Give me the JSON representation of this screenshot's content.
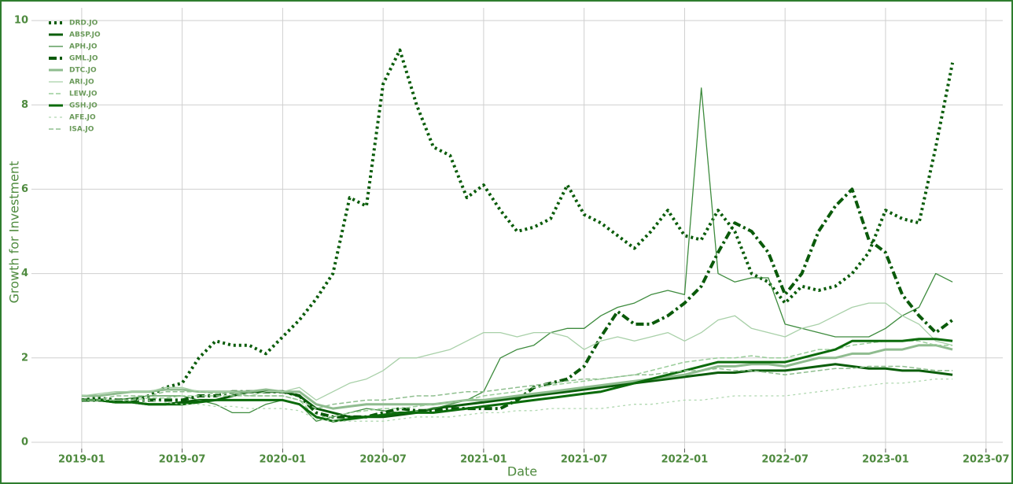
{
  "chart_data": {
    "type": "line",
    "xlabel": "Date",
    "ylabel": "Growth for Investment",
    "x": [
      "2019-01",
      "2019-02",
      "2019-03",
      "2019-04",
      "2019-05",
      "2019-06",
      "2019-07",
      "2019-08",
      "2019-09",
      "2019-10",
      "2019-11",
      "2019-12",
      "2020-01",
      "2020-02",
      "2020-03",
      "2020-04",
      "2020-05",
      "2020-06",
      "2020-07",
      "2020-08",
      "2020-09",
      "2020-10",
      "2020-11",
      "2020-12",
      "2021-01",
      "2021-02",
      "2021-03",
      "2021-04",
      "2021-05",
      "2021-06",
      "2021-07",
      "2021-08",
      "2021-09",
      "2021-10",
      "2021-11",
      "2021-12",
      "2022-01",
      "2022-02",
      "2022-03",
      "2022-04",
      "2022-05",
      "2022-06",
      "2022-07",
      "2022-08",
      "2022-09",
      "2022-10",
      "2022-11",
      "2022-12",
      "2023-01",
      "2023-02",
      "2023-03",
      "2023-04",
      "2023-05"
    ],
    "xlim": [
      "2018-10",
      "2023-08"
    ],
    "xticks": [
      "2019-01",
      "2019-07",
      "2020-01",
      "2020-07",
      "2021-01",
      "2021-07",
      "2022-01",
      "2022-07",
      "2023-01",
      "2023-07"
    ],
    "ylim": [
      -0.15,
      10.3
    ],
    "yticks": [
      0,
      2,
      4,
      6,
      8,
      10
    ],
    "grid": true,
    "legend": "upper left",
    "series": [
      {
        "name": "DRD.JO",
        "color": "#0a5c0a",
        "dash": "dotted",
        "width": 4,
        "values": [
          1.0,
          1.05,
          1.0,
          1.0,
          1.1,
          1.3,
          1.4,
          2.0,
          2.4,
          2.3,
          2.3,
          2.1,
          2.5,
          2.9,
          3.4,
          4.0,
          5.8,
          5.6,
          8.5,
          9.3,
          8.0,
          7.0,
          6.8,
          5.8,
          6.1,
          5.5,
          5.0,
          5.1,
          5.3,
          6.1,
          5.4,
          5.2,
          4.9,
          4.6,
          5.0,
          5.5,
          4.9,
          4.8,
          5.5,
          5.0,
          4.0,
          3.8,
          3.3,
          3.7,
          3.6,
          3.7,
          4.0,
          4.5,
          5.5,
          5.3,
          5.2,
          7.0,
          9.0
        ]
      },
      {
        "name": "ABSP.JO",
        "color": "#0b5e0b",
        "dash": "solid",
        "width": 3,
        "values": [
          1.0,
          1.0,
          0.95,
          0.95,
          0.9,
          0.9,
          0.95,
          1.0,
          1.0,
          1.1,
          1.2,
          1.2,
          1.2,
          1.1,
          0.8,
          0.7,
          0.6,
          0.6,
          0.6,
          0.65,
          0.7,
          0.8,
          0.85,
          0.9,
          0.95,
          1.0,
          1.05,
          1.1,
          1.15,
          1.2,
          1.25,
          1.3,
          1.35,
          1.4,
          1.45,
          1.5,
          1.55,
          1.6,
          1.65,
          1.65,
          1.7,
          1.7,
          1.7,
          1.75,
          1.8,
          1.85,
          1.8,
          1.75,
          1.75,
          1.7,
          1.7,
          1.65,
          1.6
        ]
      },
      {
        "name": "APH.JO",
        "color": "#3d8b3d",
        "dash": "solid",
        "width": 1.3,
        "values": [
          1.0,
          1.0,
          1.0,
          1.05,
          1.1,
          1.1,
          1.1,
          1.0,
          0.9,
          0.7,
          0.7,
          0.9,
          1.0,
          0.9,
          0.5,
          0.6,
          0.7,
          0.8,
          0.75,
          0.7,
          0.75,
          0.8,
          0.9,
          1.0,
          1.2,
          2.0,
          2.2,
          2.3,
          2.6,
          2.7,
          2.7,
          3.0,
          3.2,
          3.3,
          3.5,
          3.6,
          3.5,
          8.4,
          4.0,
          3.8,
          3.9,
          3.9,
          2.8,
          2.7,
          2.6,
          2.5,
          2.5,
          2.5,
          2.7,
          3.0,
          3.2,
          4.0,
          3.8
        ]
      },
      {
        "name": "GML.JO",
        "color": "#0a5a0a",
        "dash": "dashdot",
        "width": 4,
        "values": [
          1.0,
          1.0,
          1.0,
          1.0,
          1.0,
          1.0,
          1.0,
          1.1,
          1.1,
          1.2,
          1.2,
          1.2,
          1.2,
          1.1,
          0.7,
          0.6,
          0.6,
          0.6,
          0.7,
          0.8,
          0.75,
          0.75,
          0.8,
          0.8,
          0.8,
          0.8,
          1.0,
          1.3,
          1.4,
          1.5,
          1.8,
          2.5,
          3.1,
          2.8,
          2.8,
          3.0,
          3.3,
          3.7,
          4.5,
          5.2,
          5.0,
          4.5,
          3.5,
          4.0,
          5.0,
          5.6,
          6.0,
          4.8,
          4.5,
          3.5,
          3.0,
          2.6,
          2.9
        ]
      },
      {
        "name": "DTC.JO",
        "color": "#8fbc8f",
        "dash": "solid",
        "width": 3,
        "values": [
          1.1,
          1.1,
          1.15,
          1.2,
          1.2,
          1.25,
          1.25,
          1.2,
          1.2,
          1.2,
          1.2,
          1.25,
          1.2,
          1.2,
          0.9,
          0.8,
          0.85,
          0.9,
          0.9,
          0.9,
          0.9,
          0.9,
          0.95,
          1.0,
          1.0,
          1.05,
          1.1,
          1.15,
          1.2,
          1.25,
          1.3,
          1.35,
          1.4,
          1.45,
          1.5,
          1.55,
          1.6,
          1.7,
          1.8,
          1.8,
          1.85,
          1.85,
          1.8,
          1.9,
          2.0,
          2.0,
          2.1,
          2.1,
          2.2,
          2.2,
          2.3,
          2.3,
          2.2
        ]
      },
      {
        "name": "ARI.JO",
        "color": "#a8d0a8",
        "dash": "solid",
        "width": 1.3,
        "values": [
          1.1,
          1.15,
          1.2,
          1.2,
          1.2,
          1.3,
          1.3,
          1.2,
          1.2,
          1.2,
          1.1,
          1.2,
          1.2,
          1.3,
          1.0,
          1.2,
          1.4,
          1.5,
          1.7,
          2.0,
          2.0,
          2.1,
          2.2,
          2.4,
          2.6,
          2.6,
          2.5,
          2.6,
          2.6,
          2.5,
          2.2,
          2.4,
          2.5,
          2.4,
          2.5,
          2.6,
          2.4,
          2.6,
          2.9,
          3.0,
          2.7,
          2.6,
          2.5,
          2.7,
          2.8,
          3.0,
          3.2,
          3.3,
          3.3,
          3.0,
          2.8,
          2.4,
          2.3
        ]
      },
      {
        "name": "LEW.JO",
        "color": "#9acd9a",
        "dash": "dashed",
        "width": 1.5,
        "values": [
          1.0,
          1.0,
          1.0,
          1.0,
          1.05,
          1.05,
          1.1,
          1.1,
          1.1,
          1.1,
          1.1,
          1.1,
          1.1,
          1.0,
          0.6,
          0.6,
          0.7,
          0.75,
          0.8,
          0.8,
          0.85,
          0.9,
          0.95,
          1.0,
          1.1,
          1.15,
          1.2,
          1.3,
          1.35,
          1.4,
          1.45,
          1.5,
          1.55,
          1.6,
          1.7,
          1.8,
          1.9,
          1.95,
          2.0,
          2.0,
          2.05,
          2.0,
          2.0,
          2.1,
          2.2,
          2.2,
          2.3,
          2.35,
          2.4,
          2.4,
          2.4,
          2.3,
          2.3
        ]
      },
      {
        "name": "GSH.JO",
        "color": "#0b6b0b",
        "dash": "solid",
        "width": 3,
        "values": [
          1.0,
          1.0,
          0.95,
          0.95,
          0.9,
          0.9,
          0.9,
          0.95,
          1.0,
          1.0,
          1.0,
          1.0,
          1.0,
          0.9,
          0.6,
          0.5,
          0.55,
          0.6,
          0.65,
          0.7,
          0.7,
          0.7,
          0.75,
          0.8,
          0.85,
          0.9,
          0.95,
          1.0,
          1.05,
          1.1,
          1.15,
          1.2,
          1.3,
          1.4,
          1.5,
          1.6,
          1.7,
          1.8,
          1.9,
          1.9,
          1.9,
          1.9,
          1.9,
          2.0,
          2.1,
          2.2,
          2.4,
          2.4,
          2.4,
          2.4,
          2.45,
          2.45,
          2.4
        ]
      },
      {
        "name": "AFE.JO",
        "color": "#b0d8b0",
        "dash": "dotted",
        "width": 1.3,
        "values": [
          1.0,
          1.0,
          1.0,
          1.0,
          1.0,
          0.95,
          0.9,
          0.9,
          0.85,
          0.85,
          0.8,
          0.8,
          0.8,
          0.75,
          0.55,
          0.5,
          0.5,
          0.5,
          0.5,
          0.55,
          0.6,
          0.6,
          0.6,
          0.65,
          0.7,
          0.7,
          0.75,
          0.75,
          0.8,
          0.8,
          0.8,
          0.8,
          0.85,
          0.9,
          0.9,
          0.95,
          1.0,
          1.0,
          1.05,
          1.1,
          1.1,
          1.1,
          1.1,
          1.15,
          1.2,
          1.25,
          1.3,
          1.35,
          1.4,
          1.4,
          1.45,
          1.5,
          1.5
        ]
      },
      {
        "name": "ISA.JO",
        "color": "#8fbf8f",
        "dash": "dashed",
        "width": 1.5,
        "values": [
          1.0,
          1.0,
          1.1,
          1.1,
          1.1,
          1.2,
          1.2,
          1.2,
          1.15,
          1.15,
          1.1,
          1.1,
          1.1,
          1.0,
          0.8,
          0.9,
          0.95,
          1.0,
          1.0,
          1.05,
          1.1,
          1.1,
          1.15,
          1.2,
          1.2,
          1.25,
          1.3,
          1.35,
          1.4,
          1.45,
          1.5,
          1.5,
          1.55,
          1.6,
          1.6,
          1.65,
          1.7,
          1.7,
          1.75,
          1.7,
          1.7,
          1.65,
          1.6,
          1.65,
          1.7,
          1.75,
          1.75,
          1.8,
          1.8,
          1.8,
          1.75,
          1.7,
          1.7
        ]
      }
    ]
  }
}
